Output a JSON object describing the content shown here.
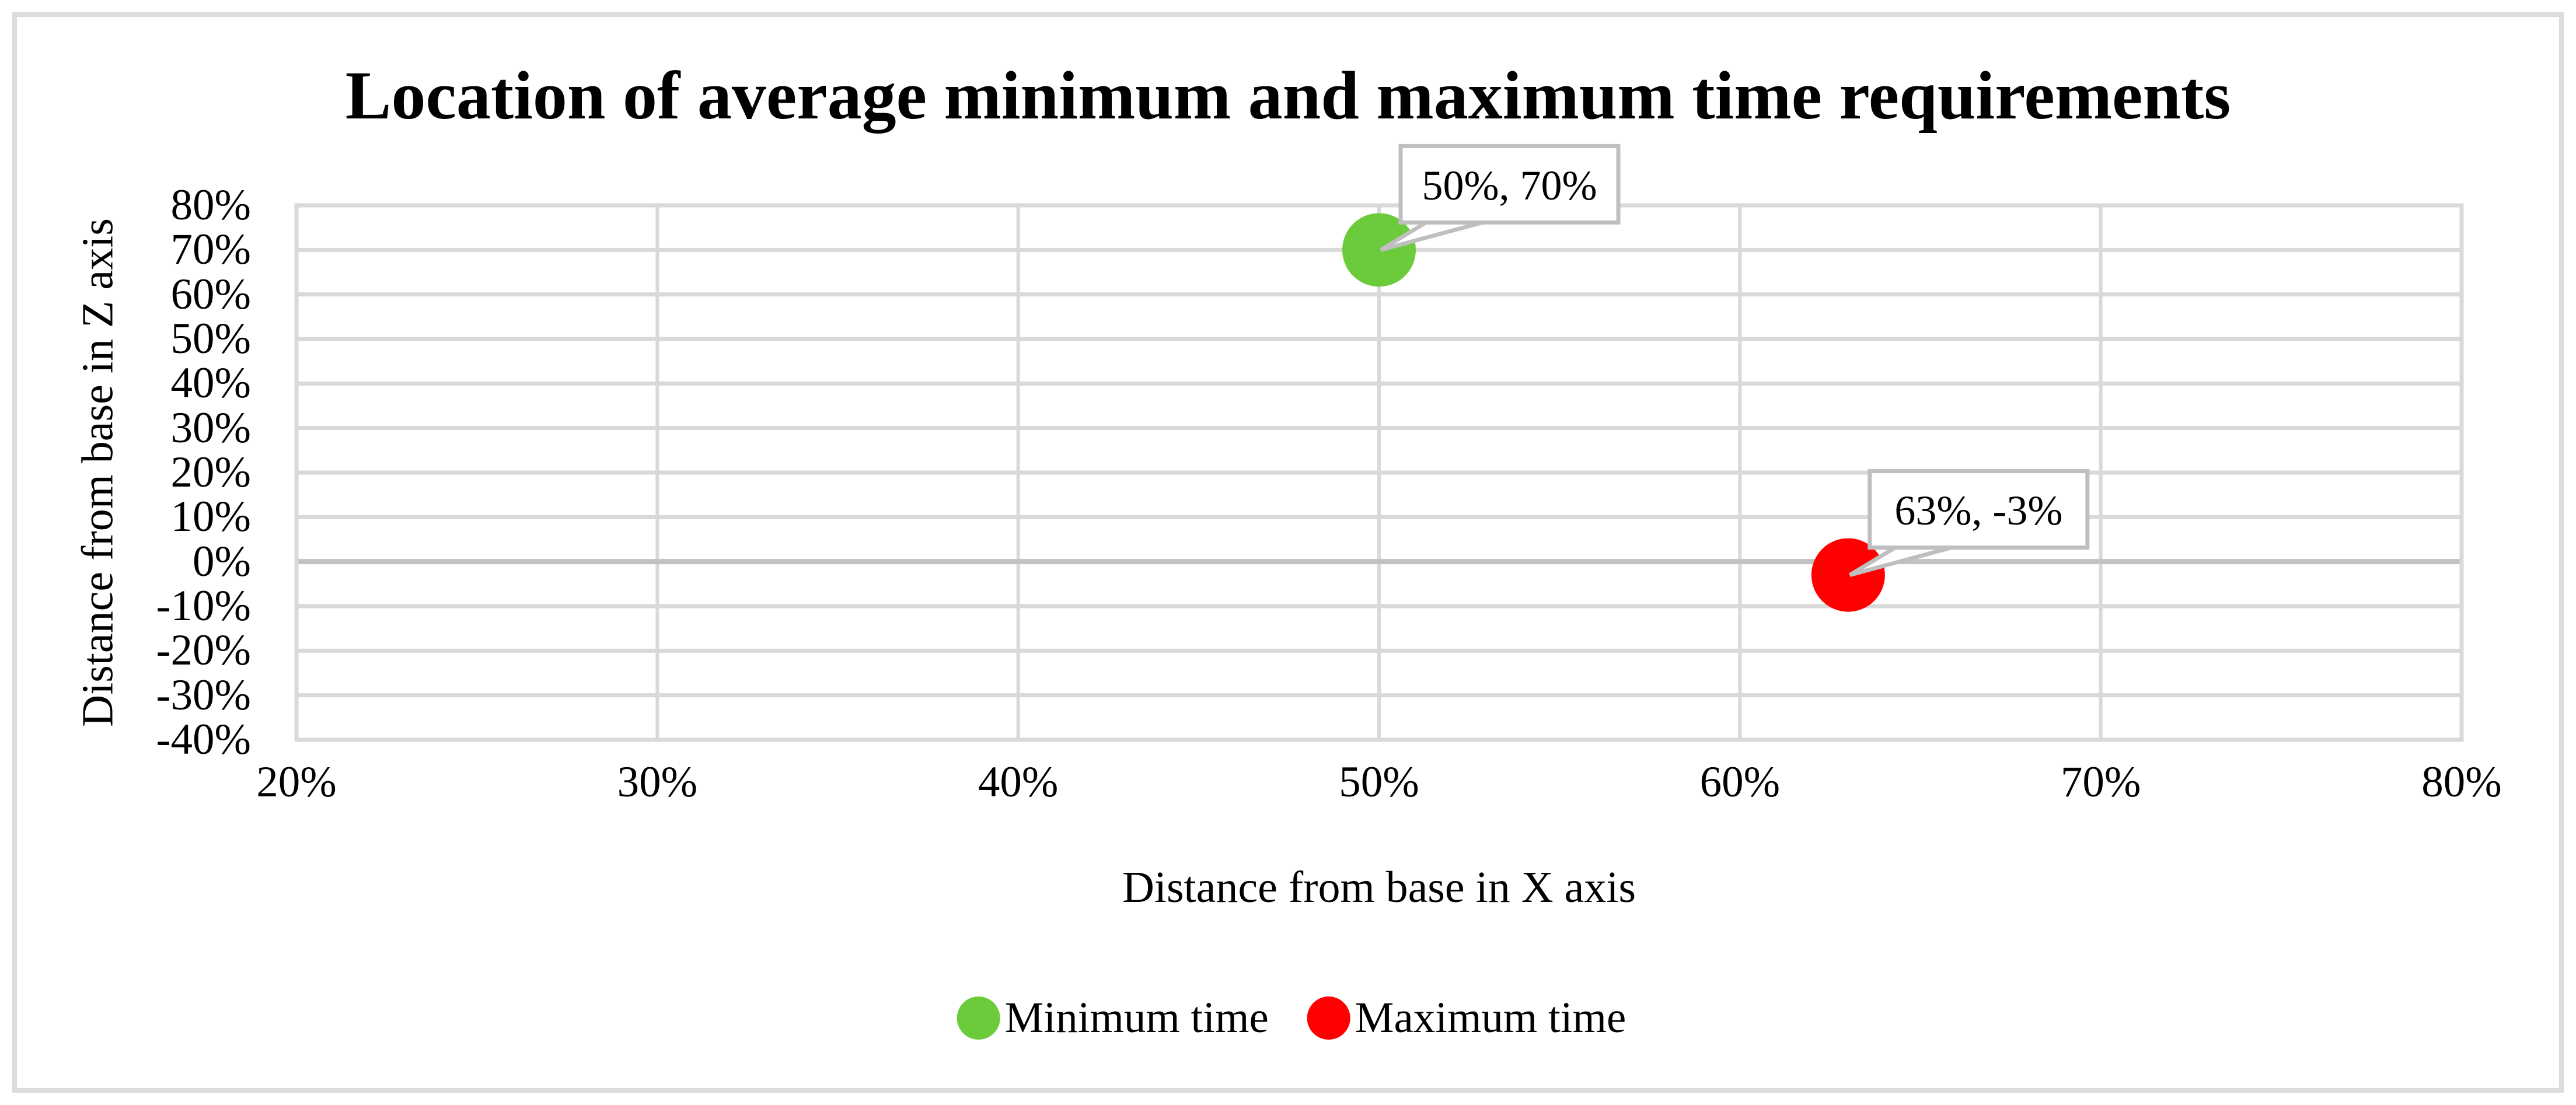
{
  "figure": {
    "title": "Location of average minimum and maximum time requirements"
  },
  "chart_data": {
    "type": "scatter",
    "title": "Location of average minimum and maximum time requirements",
    "xlabel": "Distance from base in X axis",
    "ylabel": "Distance from base in Z axis",
    "xlim": [
      20,
      80
    ],
    "ylim": [
      -40,
      80
    ],
    "x_tick_values": [
      20,
      30,
      40,
      50,
      60,
      70,
      80
    ],
    "x_tick_labels": [
      "20%",
      "30%",
      "40%",
      "50%",
      "60%",
      "70%",
      "80%"
    ],
    "y_tick_values": [
      80,
      70,
      60,
      50,
      40,
      30,
      20,
      10,
      0,
      -10,
      -20,
      -30,
      -40
    ],
    "y_tick_labels": [
      "80%",
      "70%",
      "60%",
      "50%",
      "40%",
      "30%",
      "20%",
      "10%",
      "0%",
      "-10%",
      "-20%",
      "-30%",
      "-40%"
    ],
    "grid": true,
    "legend_position": "bottom",
    "series": [
      {
        "name": "Minimum time",
        "color": "#6BCB3B",
        "points": [
          {
            "x": 50,
            "y": 70,
            "label": "50%, 70%"
          }
        ]
      },
      {
        "name": "Maximum time",
        "color": "#FE0000",
        "points": [
          {
            "x": 63,
            "y": -3,
            "label": "63%, -3%"
          }
        ]
      }
    ]
  },
  "colors": {
    "gridline": "#D9D9D9",
    "zero_line": "#C2C2C2",
    "plot_border": "#D9D9D9",
    "figure_border": "#DCDCDC",
    "callout_border": "#BFBFBF",
    "callout_fill": "#FFFFFF"
  }
}
